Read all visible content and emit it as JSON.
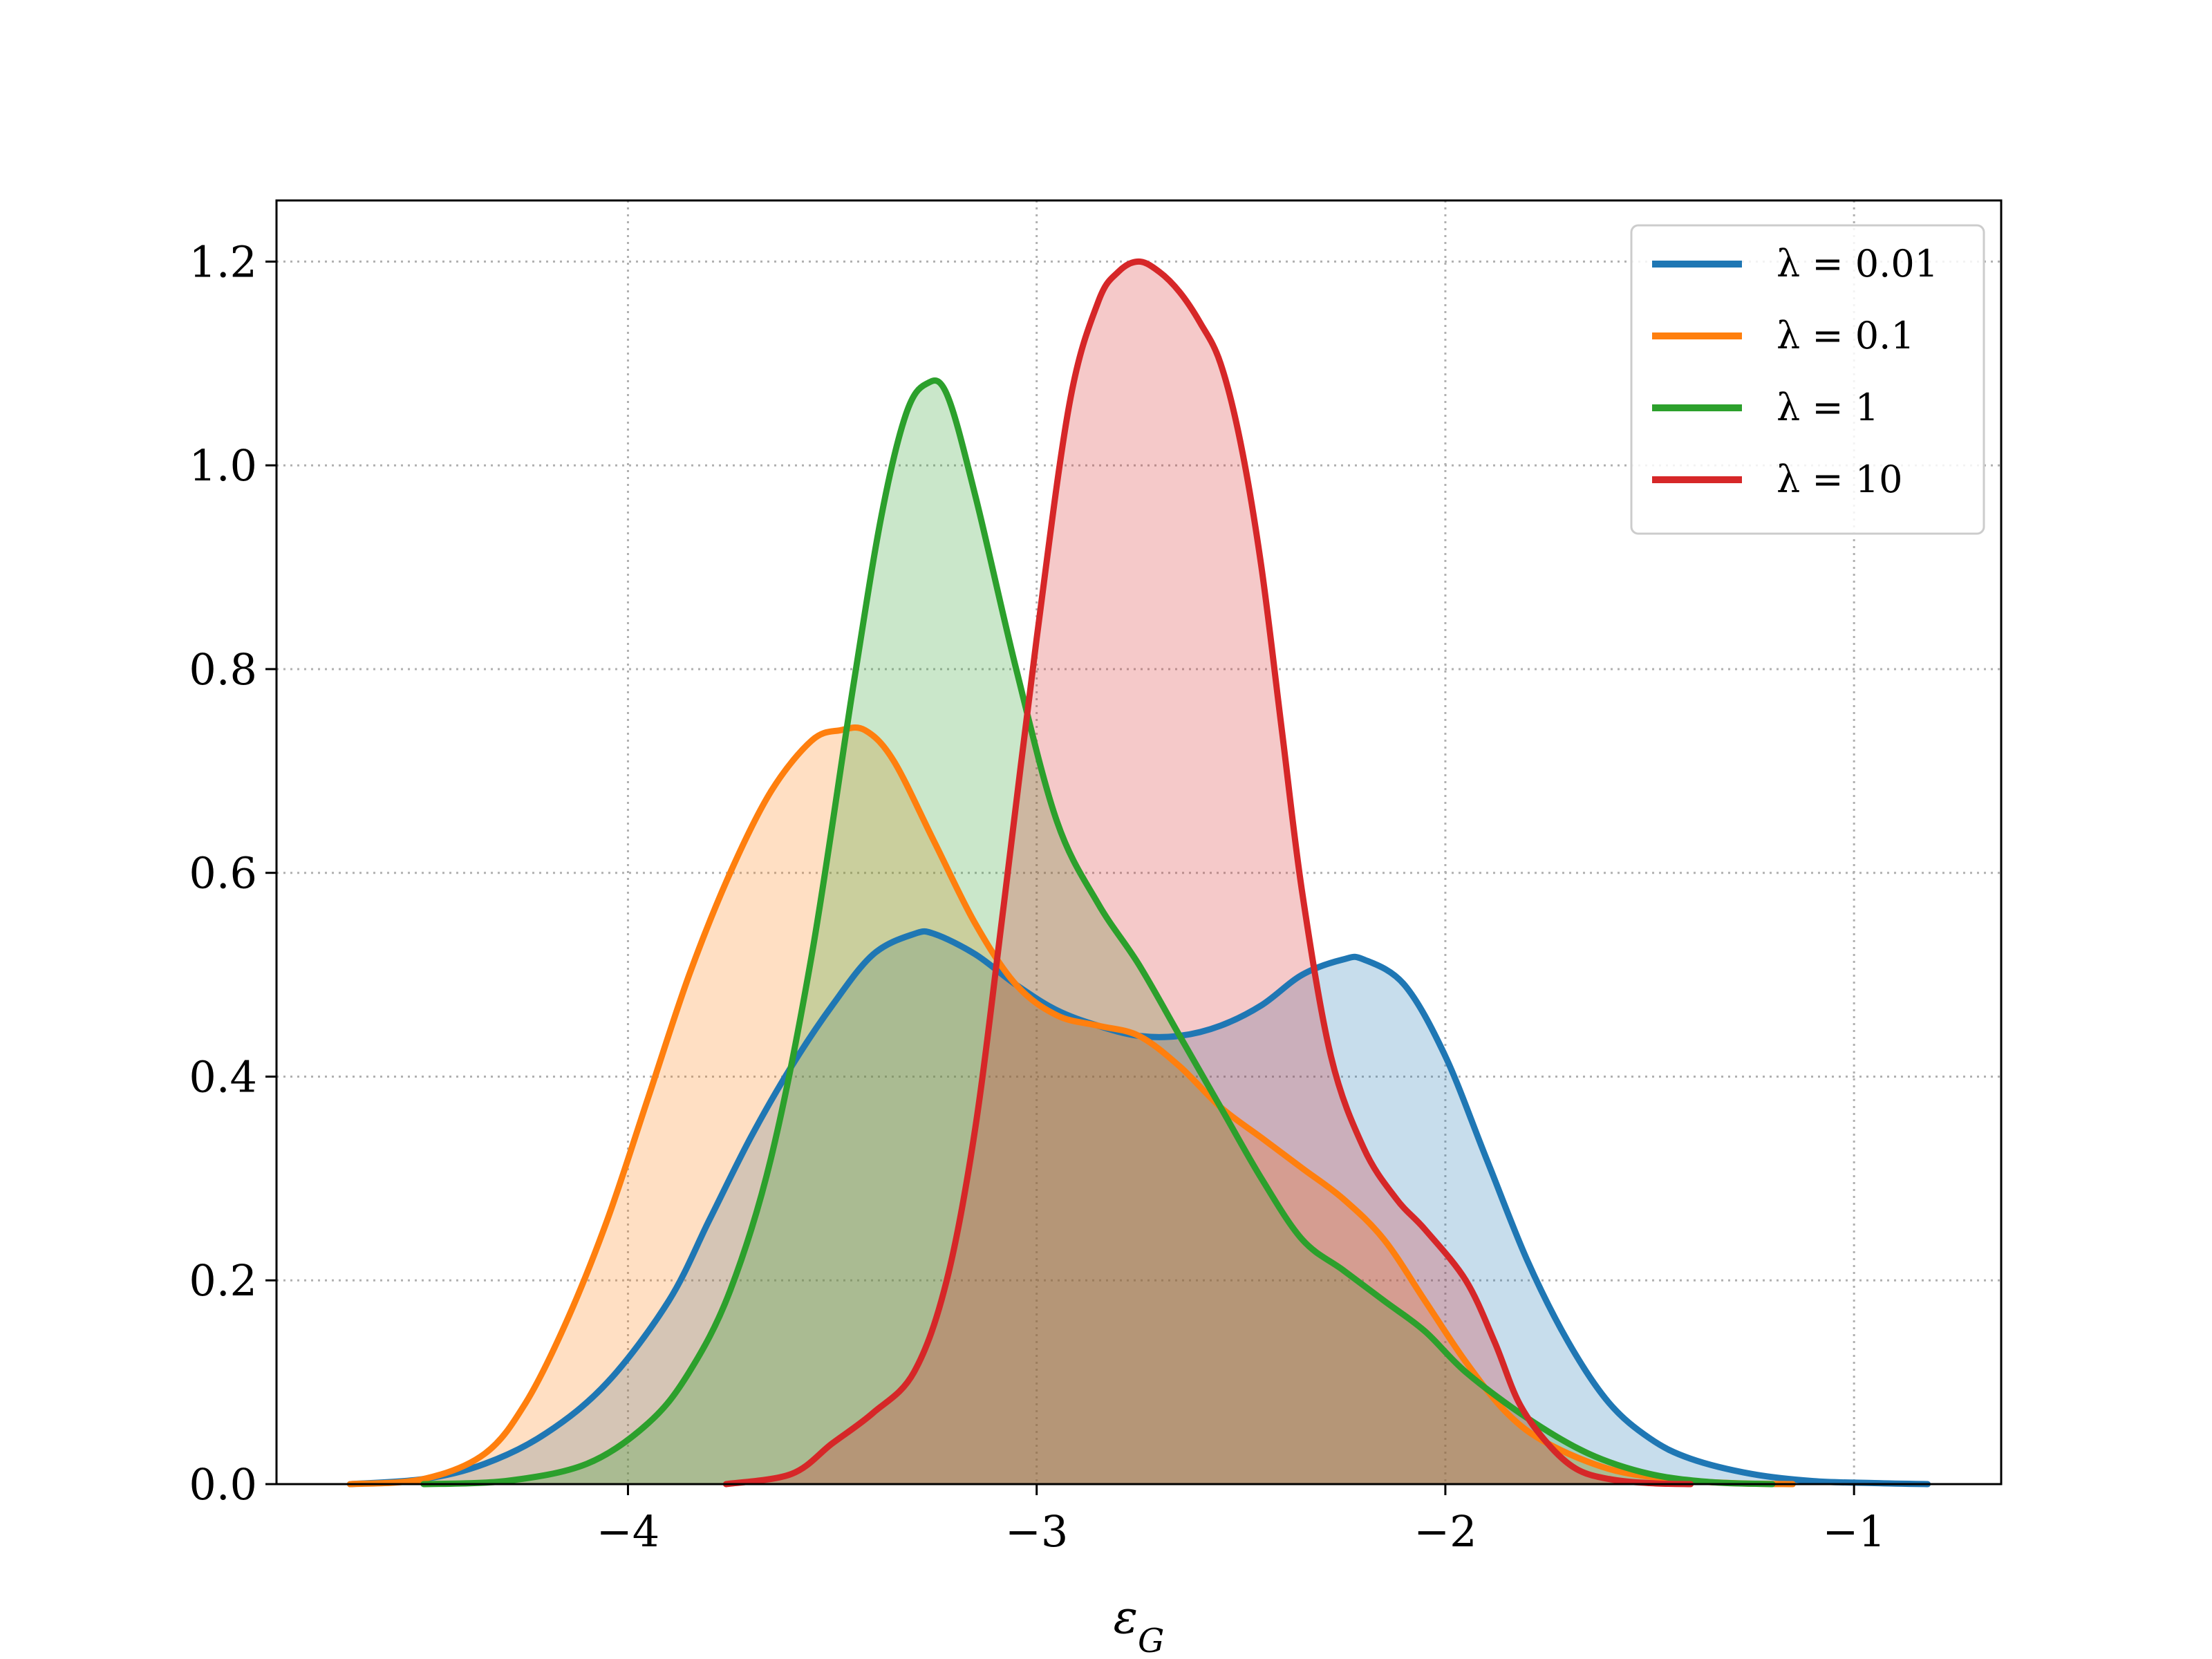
{
  "chart_data": {
    "type": "area",
    "title": "",
    "xlabel": "ε",
    "xlabel_sub": "G",
    "ylabel": "",
    "xlim": [
      -4.86,
      -0.64
    ],
    "ylim": [
      0,
      1.26
    ],
    "xticks": [
      -4,
      -3,
      -2,
      -1
    ],
    "xtick_labels": [
      "−4",
      "−3",
      "−2",
      "−1"
    ],
    "yticks": [
      0.0,
      0.2,
      0.4,
      0.6,
      0.8,
      1.0,
      1.2
    ],
    "ytick_labels": [
      "0.0",
      "0.2",
      "0.4",
      "0.6",
      "0.8",
      "1.0",
      "1.2"
    ],
    "grid": true,
    "legend_position": "top-right",
    "series": [
      {
        "name": "λ = 0.01",
        "color": "#1f77b4",
        "x": [
          -4.68,
          -4.5,
          -4.35,
          -4.2,
          -4.05,
          -3.9,
          -3.8,
          -3.7,
          -3.6,
          -3.5,
          -3.4,
          -3.3,
          -3.25,
          -3.15,
          -3.05,
          -2.95,
          -2.85,
          -2.75,
          -2.65,
          -2.55,
          -2.45,
          -2.35,
          -2.25,
          -2.2,
          -2.1,
          -2.0,
          -1.9,
          -1.8,
          -1.7,
          -1.6,
          -1.5,
          -1.4,
          -1.25,
          -1.1,
          -0.95,
          -0.82
        ],
        "y": [
          0.0,
          0.005,
          0.02,
          0.05,
          0.1,
          0.18,
          0.26,
          0.34,
          0.41,
          0.47,
          0.52,
          0.54,
          0.54,
          0.52,
          0.49,
          0.465,
          0.45,
          0.44,
          0.44,
          0.45,
          0.47,
          0.5,
          0.515,
          0.515,
          0.49,
          0.42,
          0.32,
          0.22,
          0.14,
          0.08,
          0.045,
          0.025,
          0.01,
          0.003,
          0.001,
          0.0
        ]
      },
      {
        "name": "λ = 0.1",
        "color": "#ff7f0e",
        "x": [
          -4.68,
          -4.5,
          -4.35,
          -4.25,
          -4.15,
          -4.05,
          -3.95,
          -3.85,
          -3.75,
          -3.65,
          -3.55,
          -3.48,
          -3.42,
          -3.35,
          -3.25,
          -3.15,
          -3.05,
          -2.95,
          -2.85,
          -2.75,
          -2.65,
          -2.55,
          -2.45,
          -2.35,
          -2.25,
          -2.15,
          -2.05,
          -1.95,
          -1.85,
          -1.75,
          -1.6,
          -1.45,
          -1.3,
          -1.15
        ],
        "y": [
          0.0,
          0.005,
          0.03,
          0.08,
          0.16,
          0.26,
          0.38,
          0.5,
          0.6,
          0.68,
          0.73,
          0.74,
          0.74,
          0.71,
          0.63,
          0.55,
          0.49,
          0.46,
          0.45,
          0.44,
          0.41,
          0.37,
          0.34,
          0.31,
          0.28,
          0.24,
          0.18,
          0.12,
          0.07,
          0.04,
          0.015,
          0.005,
          0.001,
          0.0
        ]
      },
      {
        "name": "λ = 1",
        "color": "#2ca02c",
        "x": [
          -4.5,
          -4.3,
          -4.1,
          -3.95,
          -3.85,
          -3.75,
          -3.65,
          -3.55,
          -3.45,
          -3.38,
          -3.32,
          -3.27,
          -3.22,
          -3.15,
          -3.05,
          -2.95,
          -2.85,
          -2.75,
          -2.65,
          -2.55,
          -2.45,
          -2.35,
          -2.25,
          -2.15,
          -2.05,
          -1.95,
          -1.8,
          -1.65,
          -1.5,
          -1.35,
          -1.2
        ],
        "y": [
          0.0,
          0.003,
          0.02,
          0.06,
          0.11,
          0.19,
          0.32,
          0.52,
          0.78,
          0.95,
          1.05,
          1.08,
          1.07,
          0.97,
          0.8,
          0.65,
          0.57,
          0.51,
          0.44,
          0.37,
          0.3,
          0.24,
          0.21,
          0.18,
          0.15,
          0.11,
          0.065,
          0.03,
          0.01,
          0.002,
          0.0
        ]
      },
      {
        "name": "λ = 10",
        "color": "#d62728",
        "x": [
          -3.76,
          -3.6,
          -3.5,
          -3.4,
          -3.3,
          -3.22,
          -3.15,
          -3.08,
          -3.0,
          -2.92,
          -2.85,
          -2.8,
          -2.75,
          -2.7,
          -2.65,
          -2.6,
          -2.55,
          -2.5,
          -2.45,
          -2.4,
          -2.35,
          -2.28,
          -2.2,
          -2.12,
          -2.05,
          -1.95,
          -1.88,
          -1.82,
          -1.75,
          -1.68,
          -1.6,
          -1.5,
          -1.4
        ],
        "y": [
          0.0,
          0.01,
          0.04,
          0.07,
          0.11,
          0.2,
          0.35,
          0.57,
          0.83,
          1.06,
          1.16,
          1.19,
          1.2,
          1.19,
          1.17,
          1.14,
          1.1,
          1.02,
          0.9,
          0.74,
          0.58,
          0.42,
          0.33,
          0.28,
          0.25,
          0.2,
          0.14,
          0.08,
          0.04,
          0.015,
          0.005,
          0.001,
          0.0
        ]
      }
    ]
  }
}
